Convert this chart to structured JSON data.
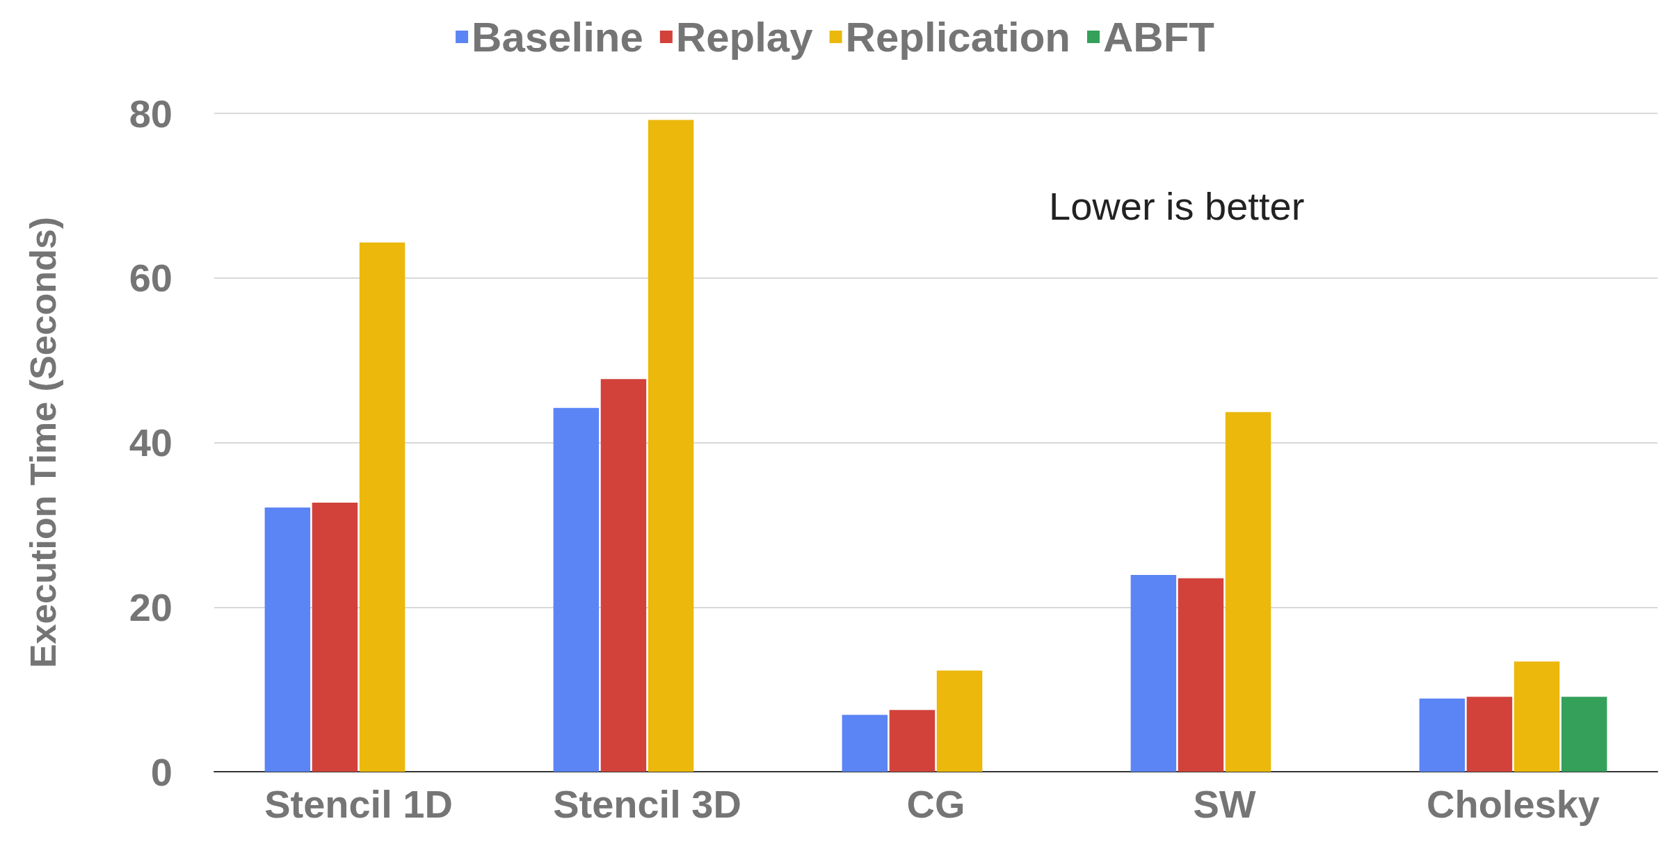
{
  "chart_data": {
    "type": "bar",
    "ylabel": "Execution Time (Seconds)",
    "categories": [
      "Stencil 1D",
      "Stencil 3D",
      "CG",
      "SW",
      "Cholesky"
    ],
    "series": [
      {
        "name": "Baseline",
        "color": "#5b84f5",
        "values": [
          32.1,
          44.2,
          6.9,
          23.9,
          8.9
        ]
      },
      {
        "name": "Replay",
        "color": "#d2423a",
        "values": [
          32.7,
          47.7,
          7.5,
          23.5,
          9.1
        ]
      },
      {
        "name": "Replication",
        "color": "#ebb80b",
        "values": [
          64.3,
          79.2,
          12.3,
          43.7,
          13.4
        ]
      },
      {
        "name": "ABFT",
        "color": "#34a05a",
        "values": [
          null,
          null,
          null,
          null,
          9.1
        ]
      }
    ],
    "ylim": [
      0,
      80
    ],
    "yticks": [
      0,
      20,
      40,
      60,
      80
    ],
    "grid": "y",
    "legend": "top",
    "annotations": [
      "Lower is better"
    ]
  }
}
